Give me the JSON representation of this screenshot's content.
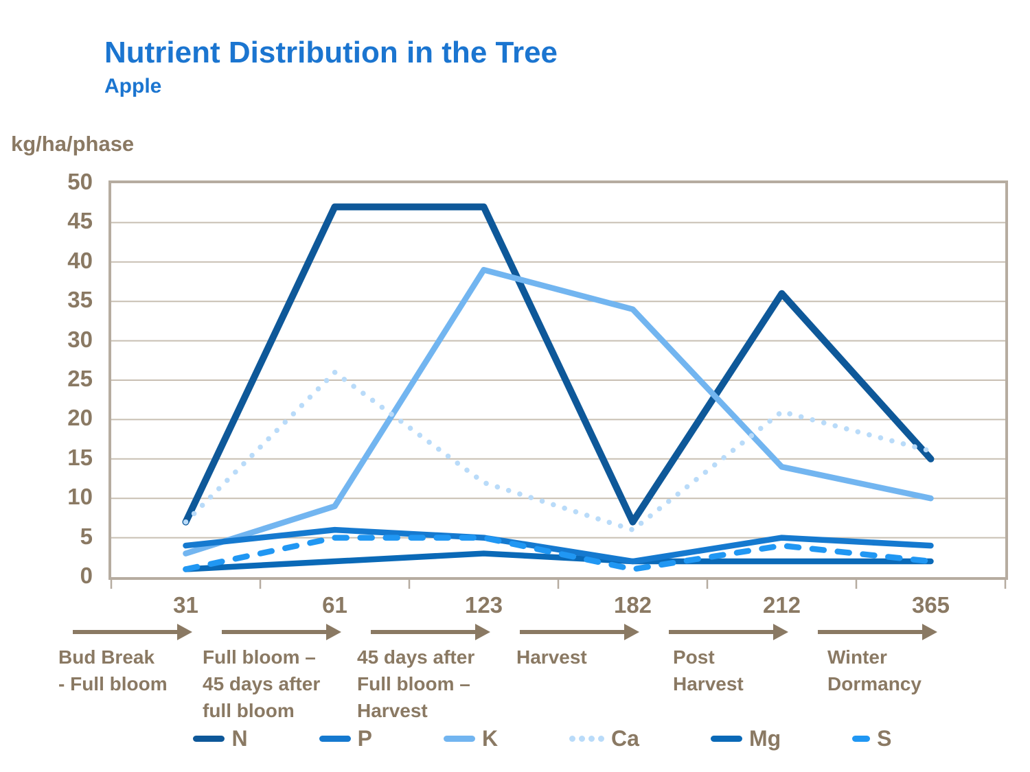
{
  "header": {
    "title": "Nutrient Distribution in the Tree",
    "subtitle": "Apple"
  },
  "chart_data": {
    "type": "line",
    "title": "Nutrient Distribution in the Tree",
    "subtitle": "Apple",
    "ylabel": "kg/ha/phase",
    "ylim": [
      0,
      50
    ],
    "ytick_step": 5,
    "grid": true,
    "legend_position": "bottom",
    "x_tick_labels": [
      "31",
      "61",
      "123",
      "182",
      "212",
      "365"
    ],
    "x_phase_labels": [
      [
        "Bud Break",
        "- Full bloom"
      ],
      [
        "Full bloom –",
        "45 days after",
        "full bloom"
      ],
      [
        "45 days after",
        "Full bloom –",
        "Harvest"
      ],
      [
        "Harvest"
      ],
      [
        "Post",
        "Harvest"
      ],
      [
        "Winter",
        "Dormancy"
      ]
    ],
    "series": [
      {
        "name": "N",
        "line_style": "solid",
        "color": "#0E5899",
        "values": [
          7,
          47,
          47,
          7,
          36,
          15
        ]
      },
      {
        "name": "P",
        "line_style": "solid",
        "color": "#1579CF",
        "values": [
          4,
          6,
          5,
          2,
          5,
          4
        ]
      },
      {
        "name": "K",
        "line_style": "solid",
        "color": "#72B5F0",
        "values": [
          3,
          9,
          39,
          34,
          14,
          10
        ]
      },
      {
        "name": "Ca",
        "line_style": "dotted",
        "color": "#B9DBF9",
        "values": [
          7,
          26,
          12,
          6,
          21,
          16
        ]
      },
      {
        "name": "Mg",
        "line_style": "solid",
        "color": "#0A69B7",
        "values": [
          1,
          2,
          3,
          2,
          2,
          2
        ]
      },
      {
        "name": "S",
        "line_style": "dashed",
        "color": "#2097F3",
        "values": [
          1,
          5,
          5,
          1,
          4,
          2
        ]
      }
    ],
    "colors": {
      "title_text": "#1B75D0",
      "axis_text": "#8A7963",
      "frame": "#B6ACA0",
      "gridline": "#C8BFB2"
    }
  }
}
